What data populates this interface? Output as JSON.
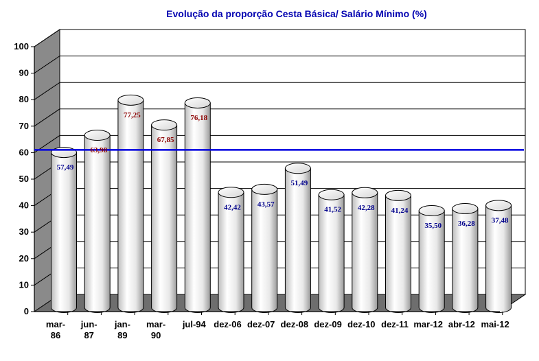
{
  "chart_data": {
    "type": "bar",
    "title": "Evolução da proporção Cesta Básica/ Salário Mínimo (%)",
    "categories": [
      [
        "mar-",
        "86"
      ],
      [
        "jun-",
        "87"
      ],
      [
        "jan-",
        "89"
      ],
      [
        "mar-",
        "90"
      ],
      [
        "jul-94"
      ],
      [
        "dez-06"
      ],
      [
        "dez-07"
      ],
      [
        "dez-08"
      ],
      [
        "dez-09"
      ],
      [
        "dez-10"
      ],
      [
        "dez-11"
      ],
      [
        "mar-12"
      ],
      [
        "abr-12"
      ],
      [
        "mai-12"
      ]
    ],
    "values": [
      57.49,
      63.98,
      77.25,
      67.85,
      76.18,
      42.42,
      43.57,
      51.49,
      41.52,
      42.28,
      41.24,
      35.5,
      36.28,
      37.48
    ],
    "data_labels": [
      "57,49",
      "63,98",
      "77,25",
      "67,85",
      "76,18",
      "42,42",
      "43,57",
      "51,49",
      "41,52",
      "42,28",
      "41,24",
      "35,50",
      "36,28",
      "37,48"
    ],
    "label_colors": [
      "#00008b",
      "#8b0000",
      "#8b0000",
      "#8b0000",
      "#8b0000",
      "#00008b",
      "#00008b",
      "#00008b",
      "#00008b",
      "#00008b",
      "#00008b",
      "#00008b",
      "#00008b",
      "#00008b"
    ],
    "yticks": [
      "0",
      "10",
      "20",
      "30",
      "40",
      "50",
      "60",
      "70",
      "80",
      "90",
      "100"
    ],
    "ylim": [
      0,
      100
    ],
    "reference_line": 60,
    "reference_color": "#0000e0",
    "grid": true,
    "legend": "none"
  }
}
